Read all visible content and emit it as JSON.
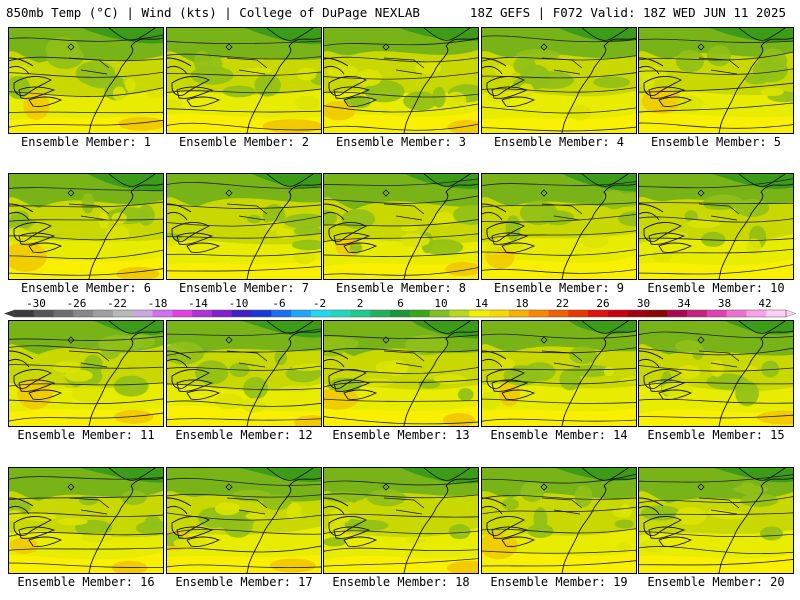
{
  "header": {
    "title_left": "850mb Temp (°C) | Wind (kts) | College of DuPage NEXLAB",
    "title_right": "18Z GEFS | F072 Valid: 18Z WED JUN 11 2025"
  },
  "members": [
    {
      "label": "Ensemble Member: 1"
    },
    {
      "label": "Ensemble Member: 2"
    },
    {
      "label": "Ensemble Member: 3"
    },
    {
      "label": "Ensemble Member: 4"
    },
    {
      "label": "Ensemble Member: 5"
    },
    {
      "label": "Ensemble Member: 6"
    },
    {
      "label": "Ensemble Member: 7"
    },
    {
      "label": "Ensemble Member: 8"
    },
    {
      "label": "Ensemble Member: 9"
    },
    {
      "label": "Ensemble Member: 10"
    },
    {
      "label": "Ensemble Member: 11"
    },
    {
      "label": "Ensemble Member: 12"
    },
    {
      "label": "Ensemble Member: 13"
    },
    {
      "label": "Ensemble Member: 14"
    },
    {
      "label": "Ensemble Member: 15"
    },
    {
      "label": "Ensemble Member: 16"
    },
    {
      "label": "Ensemble Member: 17"
    },
    {
      "label": "Ensemble Member: 18"
    },
    {
      "label": "Ensemble Member: 19"
    },
    {
      "label": "Ensemble Member: 20"
    }
  ],
  "colorbar": {
    "ticks": [
      "-30",
      "-26",
      "-22",
      "-18",
      "-14",
      "-10",
      "-6",
      "-2",
      "2",
      "6",
      "10",
      "14",
      "18",
      "22",
      "26",
      "30",
      "34",
      "38",
      "42"
    ],
    "colors": [
      "#3a3a3a",
      "#555555",
      "#6e6e6e",
      "#888888",
      "#a0a0a0",
      "#b8b8b8",
      "#c8a8e0",
      "#d070f0",
      "#e040e0",
      "#b030d8",
      "#8020c8",
      "#4020c0",
      "#1838d8",
      "#1870f0",
      "#20a8f8",
      "#20d8f0",
      "#20d8c0",
      "#20c890",
      "#20b060",
      "#189838",
      "#38a818",
      "#80c020",
      "#b8d818",
      "#f0f000",
      "#f8d800",
      "#f8b000",
      "#f88800",
      "#f06000",
      "#e83800",
      "#e01010",
      "#c80010",
      "#a00010",
      "#880808",
      "#a80850",
      "#c82080",
      "#e040b0",
      "#f070d0",
      "#f8a0e8",
      "#fcd0f4"
    ]
  }
}
